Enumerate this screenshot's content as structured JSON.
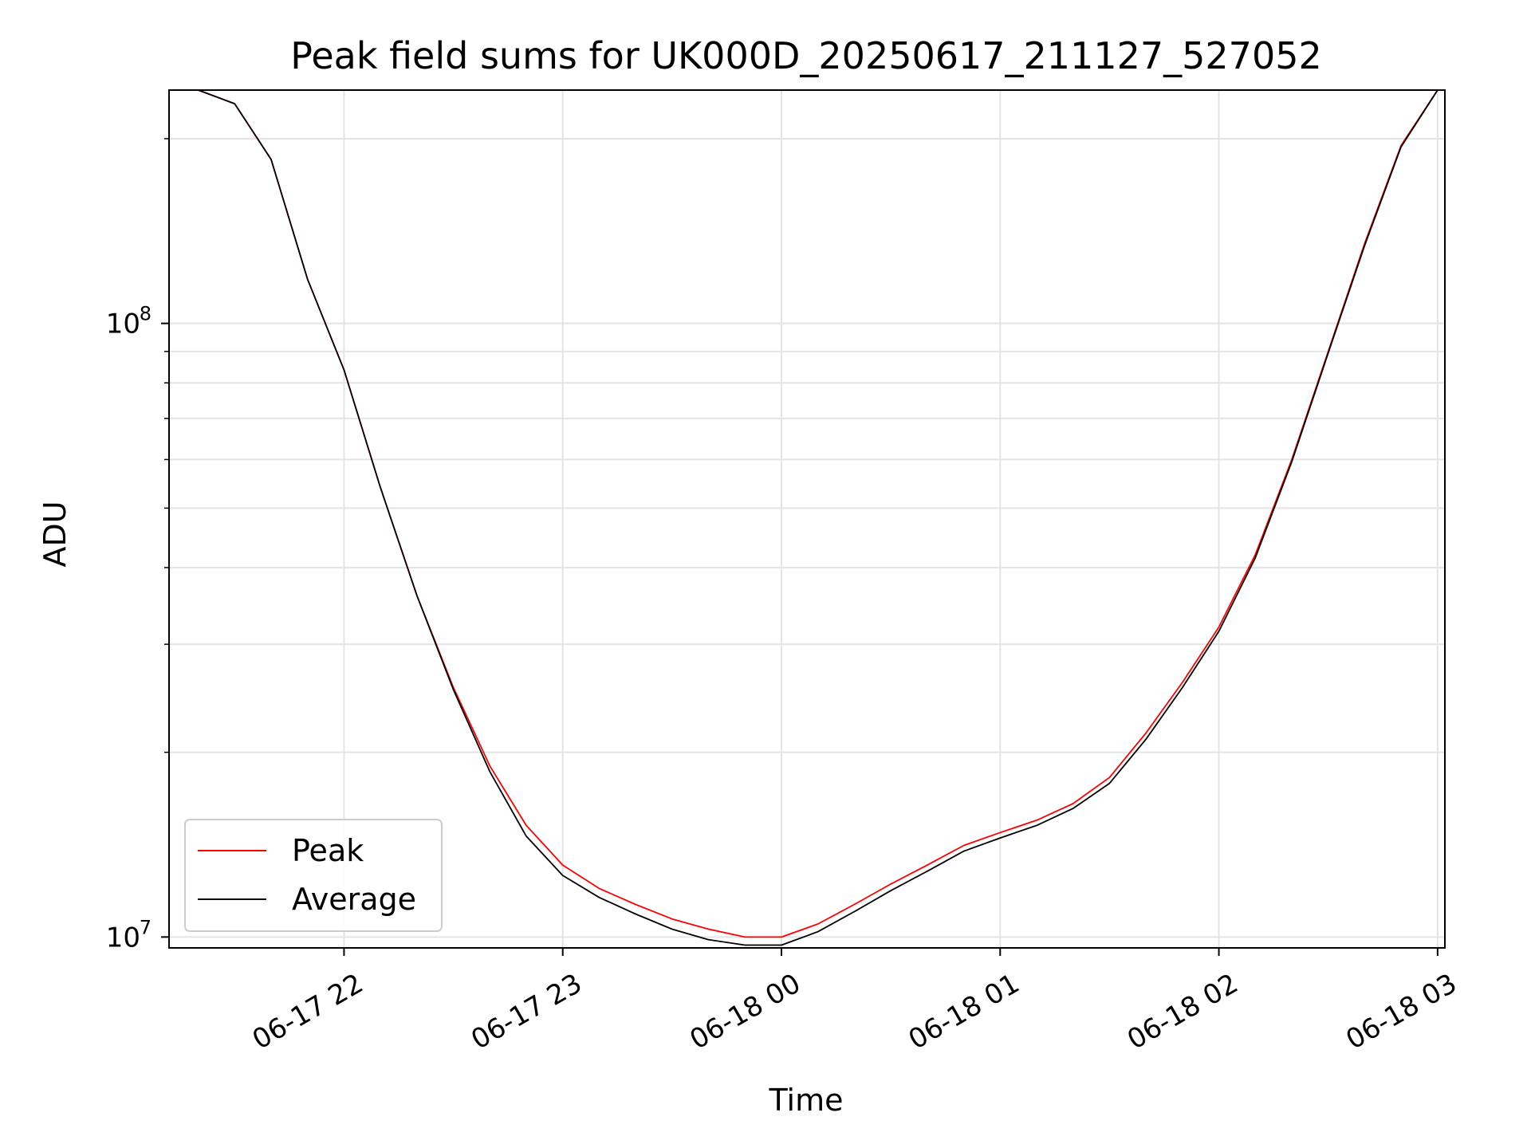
{
  "chart_data": {
    "type": "line",
    "title": "Peak field sums for UK000D_20250617_211127_527052",
    "xlabel": "Time",
    "ylabel": "ADU",
    "y_scale": "log",
    "xlim": [
      "2025-06-17 21:12",
      "2025-06-18 03:02"
    ],
    "ylim": [
      9600000,
      240000000
    ],
    "x_ticks": [
      {
        "t": "2025-06-17 22:00",
        "label": "06-17 22"
      },
      {
        "t": "2025-06-17 23:00",
        "label": "06-17 23"
      },
      {
        "t": "2025-06-18 00:00",
        "label": "06-18 00"
      },
      {
        "t": "2025-06-18 01:00",
        "label": "06-18 01"
      },
      {
        "t": "2025-06-18 02:00",
        "label": "06-18 02"
      },
      {
        "t": "2025-06-18 03:00",
        "label": "06-18 03"
      }
    ],
    "y_major_ticks": [
      {
        "value": 10000000,
        "base": "10",
        "exp": "7"
      },
      {
        "value": 100000000,
        "base": "10",
        "exp": "8"
      }
    ],
    "y_minor_ticks": [
      20000000,
      30000000,
      40000000,
      50000000,
      60000000,
      70000000,
      80000000,
      90000000,
      200000000
    ],
    "grid": true,
    "legend_position": "lower-left",
    "series": [
      {
        "name": "Peak",
        "color": "#ff0000",
        "x": [
          "2025-06-17 21:12",
          "2025-06-17 21:20",
          "2025-06-17 21:30",
          "2025-06-17 21:40",
          "2025-06-17 21:50",
          "2025-06-17 22:00",
          "2025-06-17 22:10",
          "2025-06-17 22:20",
          "2025-06-17 22:30",
          "2025-06-17 22:40",
          "2025-06-17 22:50",
          "2025-06-17 23:00",
          "2025-06-17 23:10",
          "2025-06-17 23:20",
          "2025-06-17 23:30",
          "2025-06-17 23:40",
          "2025-06-17 23:50",
          "2025-06-18 00:00",
          "2025-06-18 00:10",
          "2025-06-18 00:20",
          "2025-06-18 00:30",
          "2025-06-18 00:40",
          "2025-06-18 00:50",
          "2025-06-18 01:00",
          "2025-06-18 01:10",
          "2025-06-18 01:20",
          "2025-06-18 01:30",
          "2025-06-18 01:40",
          "2025-06-18 01:50",
          "2025-06-18 02:00",
          "2025-06-18 02:10",
          "2025-06-18 02:20",
          "2025-06-18 02:30",
          "2025-06-18 02:40",
          "2025-06-18 02:50",
          "2025-06-18 03:00",
          "2025-06-18 03:02"
        ],
        "y": [
          240000000,
          240000000,
          228000000,
          185000000,
          118000000,
          84000000,
          54000000,
          36000000,
          25500000,
          19000000,
          15200000,
          13100000,
          12000000,
          11300000,
          10700000,
          10300000,
          10000000,
          10000000,
          10500000,
          11300000,
          12200000,
          13100000,
          14100000,
          14800000,
          15500000,
          16500000,
          18200000,
          21500000,
          26000000,
          32000000,
          42000000,
          60000000,
          90000000,
          135000000,
          195000000,
          240000000,
          240000000
        ]
      },
      {
        "name": "Average",
        "color": "#000000",
        "x": [
          "2025-06-17 21:12",
          "2025-06-17 21:20",
          "2025-06-17 21:30",
          "2025-06-17 21:40",
          "2025-06-17 21:50",
          "2025-06-17 22:00",
          "2025-06-17 22:10",
          "2025-06-17 22:20",
          "2025-06-17 22:30",
          "2025-06-17 22:40",
          "2025-06-17 22:50",
          "2025-06-17 23:00",
          "2025-06-17 23:10",
          "2025-06-17 23:20",
          "2025-06-17 23:30",
          "2025-06-17 23:40",
          "2025-06-17 23:50",
          "2025-06-18 00:00",
          "2025-06-18 00:10",
          "2025-06-18 00:20",
          "2025-06-18 00:30",
          "2025-06-18 00:40",
          "2025-06-18 00:50",
          "2025-06-18 01:00",
          "2025-06-18 01:10",
          "2025-06-18 01:20",
          "2025-06-18 01:30",
          "2025-06-18 01:40",
          "2025-06-18 01:50",
          "2025-06-18 02:00",
          "2025-06-18 02:10",
          "2025-06-18 02:20",
          "2025-06-18 02:30",
          "2025-06-18 02:40",
          "2025-06-18 02:50",
          "2025-06-18 03:00",
          "2025-06-18 03:02"
        ],
        "y": [
          240000000,
          240000000,
          228000000,
          185000000,
          118000000,
          84000000,
          54000000,
          36000000,
          25300000,
          18600000,
          14600000,
          12600000,
          11600000,
          10900000,
          10300000,
          9900000,
          9700000,
          9700000,
          10200000,
          11000000,
          11900000,
          12800000,
          13800000,
          14500000,
          15200000,
          16200000,
          17800000,
          21000000,
          25500000,
          31500000,
          41500000,
          59500000,
          89500000,
          134000000,
          194000000,
          240000000,
          240000000
        ]
      }
    ]
  }
}
